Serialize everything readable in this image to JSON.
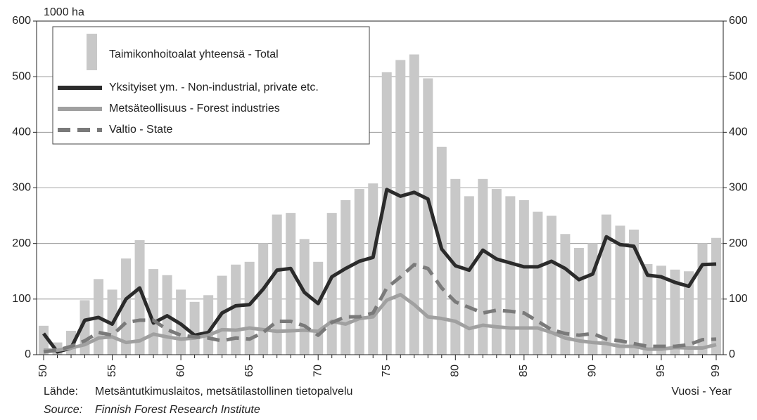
{
  "chart_data": {
    "type": "bar_line",
    "y_label": "1000 ha",
    "x_label": "Vuosi - Year",
    "source": [
      [
        "Lähde:",
        "Metsäntutkimuslaitos, metsätilastollinen tietopalvelu"
      ],
      [
        "Source:",
        "Finnish Forest Research Institute"
      ]
    ],
    "categories": [
      "50",
      null,
      null,
      null,
      null,
      "55",
      null,
      null,
      null,
      null,
      "60",
      null,
      null,
      null,
      null,
      "65",
      null,
      null,
      null,
      null,
      "70",
      null,
      null,
      null,
      null,
      "75",
      null,
      null,
      null,
      null,
      "80",
      null,
      null,
      null,
      null,
      "85",
      null,
      null,
      null,
      null,
      "90",
      null,
      null,
      null,
      null,
      "95",
      null,
      null,
      null,
      "99"
    ],
    "ylim": [
      0,
      600
    ],
    "yticks": [
      0,
      100,
      200,
      300,
      400,
      500,
      600
    ],
    "grid": true,
    "series": [
      {
        "name": "Taimikonhoitoalat yhteensä - Total",
        "type": "bar",
        "color": "#c8c8c8",
        "values": [
          52,
          22,
          43,
          98,
          136,
          117,
          173,
          206,
          154,
          143,
          117,
          95,
          107,
          142,
          162,
          167,
          200,
          252,
          255,
          208,
          167,
          255,
          278,
          298,
          308,
          508,
          530,
          540,
          497,
          374,
          316,
          285,
          316,
          298,
          285,
          278,
          257,
          250,
          217,
          192,
          200,
          252,
          232,
          225,
          163,
          160,
          153,
          150,
          200,
          210
        ]
      },
      {
        "name": "Yksityiset ym. - Non-industrial, private etc.",
        "type": "line",
        "color": "#2b2b2b",
        "dash": false,
        "values": [
          38,
          5,
          12,
          62,
          67,
          55,
          100,
          120,
          57,
          70,
          55,
          35,
          40,
          75,
          88,
          90,
          118,
          152,
          155,
          112,
          92,
          140,
          155,
          168,
          175,
          297,
          285,
          292,
          280,
          190,
          160,
          152,
          188,
          172,
          165,
          158,
          158,
          168,
          155,
          135,
          145,
          212,
          198,
          195,
          143,
          140,
          130,
          123,
          162,
          163
        ]
      },
      {
        "name": "Metsäteollisuus - Forest industries",
        "type": "line",
        "color": "#a0a0a0",
        "dash": false,
        "values": [
          8,
          8,
          12,
          18,
          30,
          32,
          22,
          25,
          37,
          32,
          28,
          30,
          35,
          45,
          44,
          48,
          45,
          42,
          43,
          44,
          42,
          60,
          55,
          65,
          68,
          98,
          108,
          90,
          68,
          65,
          60,
          47,
          53,
          50,
          48,
          48,
          48,
          40,
          30,
          25,
          22,
          20,
          15,
          15,
          10,
          10,
          13,
          12,
          12,
          18
        ]
      },
      {
        "name": "Valtio - State",
        "type": "line",
        "color": "#7a7a7a",
        "dash": true,
        "values": [
          5,
          8,
          15,
          25,
          40,
          35,
          58,
          62,
          62,
          45,
          35,
          32,
          30,
          25,
          30,
          28,
          40,
          60,
          60,
          52,
          35,
          58,
          68,
          68,
          75,
          120,
          140,
          162,
          155,
          120,
          95,
          85,
          75,
          80,
          78,
          75,
          60,
          45,
          38,
          35,
          38,
          28,
          25,
          20,
          15,
          15,
          15,
          18,
          27,
          28
        ]
      }
    ]
  }
}
